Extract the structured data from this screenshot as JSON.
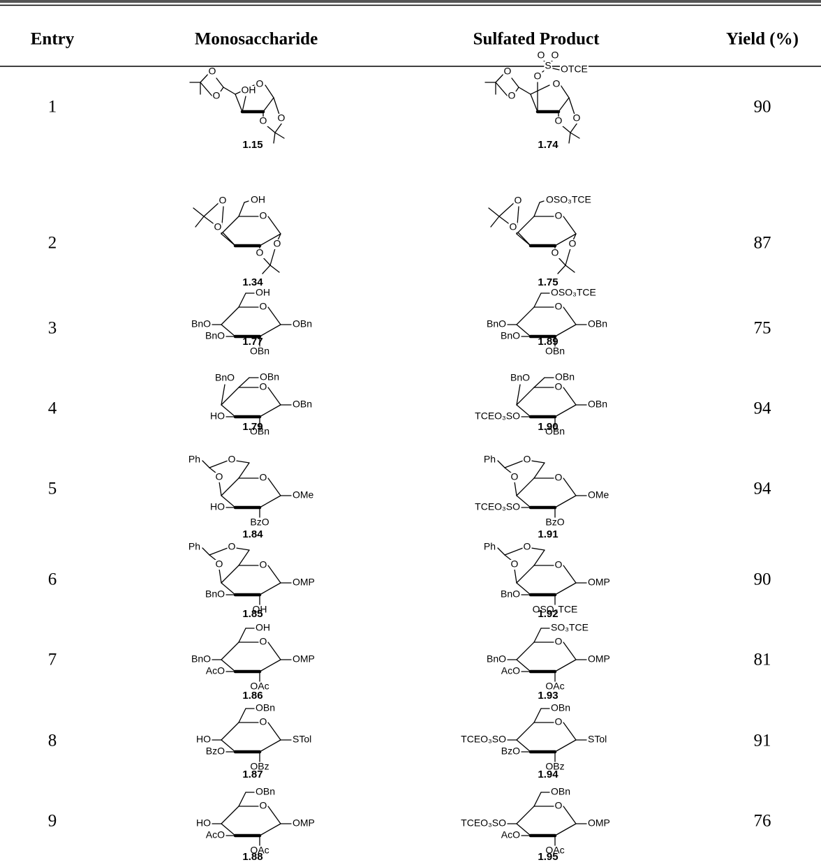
{
  "header": [
    "Entry",
    "Monosaccharide",
    "Sulfated Product",
    "Yield (%)"
  ],
  "rows": [
    {
      "entry": "1",
      "monosaccharide": {
        "label": "1.15",
        "atoms": [
          "O",
          "O",
          "OH",
          "O",
          "O",
          "O"
        ]
      },
      "product": {
        "label": "1.74",
        "atoms": [
          "O",
          "O",
          "S",
          "O",
          "OTCE",
          "O",
          "O",
          "O",
          "O",
          "O"
        ]
      },
      "yield": "90"
    },
    {
      "entry": "2",
      "monosaccharide": {
        "label": "1.34",
        "atoms": [
          "O",
          "OH",
          "O",
          "O",
          "O",
          "O"
        ]
      },
      "product": {
        "label": "1.75",
        "atoms": [
          "O",
          "OSO₃TCE",
          "O",
          "O",
          "O",
          "O"
        ]
      },
      "yield": "87"
    },
    {
      "entry": "3",
      "monosaccharide": {
        "label": "1.77",
        "atoms": [
          "O",
          "OH",
          "BnO",
          "BnO",
          "OBn",
          "OBn"
        ]
      },
      "product": {
        "label": "1.89",
        "atoms": [
          "O",
          "OSO₃TCE",
          "BnO",
          "BnO",
          "OBn",
          "OBn"
        ]
      },
      "yield": "75"
    },
    {
      "entry": "4",
      "monosaccharide": {
        "label": "1.79",
        "atoms": [
          "O",
          "OBn",
          "BnO",
          "HO",
          "OBn",
          "OBn"
        ]
      },
      "product": {
        "label": "1.90",
        "atoms": [
          "O",
          "OBn",
          "BnO",
          "TCEO₃SO",
          "OBn",
          "OBn"
        ]
      },
      "yield": "94"
    },
    {
      "entry": "5",
      "monosaccharide": {
        "label": "1.84",
        "atoms": [
          "O",
          "Ph",
          "O",
          "O",
          "HO",
          "BzO",
          "OMe"
        ]
      },
      "product": {
        "label": "1.91",
        "atoms": [
          "O",
          "Ph",
          "O",
          "O",
          "TCEO₃SO",
          "BzO",
          "OMe"
        ]
      },
      "yield": "94"
    },
    {
      "entry": "6",
      "monosaccharide": {
        "label": "1.85",
        "atoms": [
          "O",
          "Ph",
          "O",
          "O",
          "BnO",
          "OH",
          "OMP"
        ]
      },
      "product": {
        "label": "1.92",
        "atoms": [
          "O",
          "Ph",
          "O",
          "O",
          "BnO",
          "OSO₃TCE",
          "OMP"
        ]
      },
      "yield": "90"
    },
    {
      "entry": "7",
      "monosaccharide": {
        "label": "1.86",
        "atoms": [
          "O",
          "OH",
          "BnO",
          "AcO",
          "OAc",
          "OMP"
        ]
      },
      "product": {
        "label": "1.93",
        "atoms": [
          "O",
          "SO₃TCE",
          "BnO",
          "AcO",
          "OAc",
          "OMP"
        ]
      },
      "yield": "81"
    },
    {
      "entry": "8",
      "monosaccharide": {
        "label": "1.87",
        "atoms": [
          "O",
          "OBn",
          "HO",
          "BzO",
          "OBz",
          "STol"
        ]
      },
      "product": {
        "label": "1.94",
        "atoms": [
          "O",
          "OBn",
          "TCEO₃SO",
          "BzO",
          "OBz",
          "STol"
        ]
      },
      "yield": "91"
    },
    {
      "entry": "9",
      "monosaccharide": {
        "label": "1.88",
        "atoms": [
          "O",
          "OBn",
          "HO",
          "AcO",
          "OAc",
          "OMP"
        ]
      },
      "product": {
        "label": "1.95",
        "atoms": [
          "O",
          "OBn",
          "TCEO₃SO",
          "AcO",
          "OAc",
          "OMP"
        ]
      },
      "yield": "76"
    }
  ]
}
